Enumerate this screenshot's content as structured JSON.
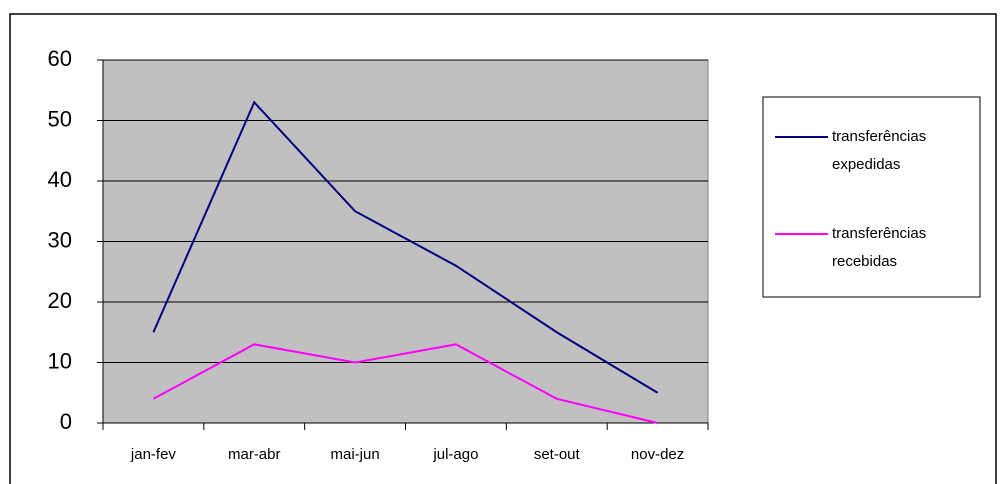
{
  "chart_data": {
    "type": "line",
    "categories": [
      "jan-fev",
      "mar-abr",
      "mai-jun",
      "jul-ago",
      "set-out",
      "nov-dez"
    ],
    "series": [
      {
        "name": "transferências expedidas",
        "color": "#000080",
        "values": [
          15,
          53,
          35,
          26,
          15,
          5
        ]
      },
      {
        "name": "transferências recebidas",
        "color": "#ff00ff",
        "values": [
          4,
          13,
          10,
          13,
          4,
          0
        ]
      }
    ],
    "ylim": [
      0,
      60
    ],
    "yticks": [
      0,
      10,
      20,
      30,
      40,
      50,
      60
    ],
    "grid": true,
    "legend": "right"
  }
}
